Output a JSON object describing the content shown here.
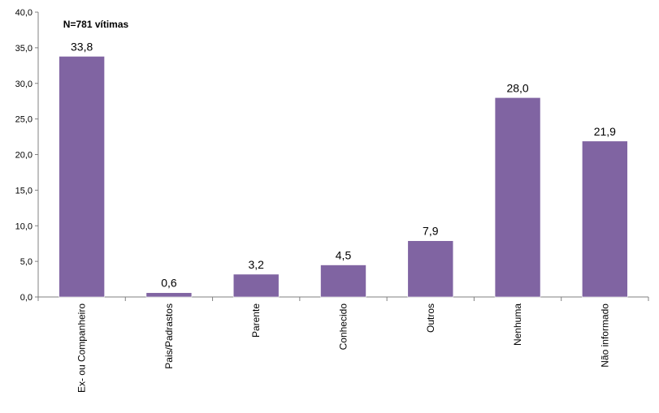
{
  "chart_data": {
    "type": "bar",
    "title": "",
    "xlabel": "",
    "ylabel": "",
    "annotation": "N=781 vítimas",
    "categories": [
      "Ex- ou Companheiro",
      "Pais/Padrastos",
      "Parente",
      "Conhecido",
      "Outros",
      "Nenhuma",
      "Não informado"
    ],
    "values": [
      33.8,
      0.6,
      3.2,
      4.5,
      7.9,
      28.0,
      21.9
    ],
    "value_labels": [
      "33,8",
      "0,6",
      "3,2",
      "4,5",
      "7,9",
      "28,0",
      "21,9"
    ],
    "ylim": [
      0,
      40
    ],
    "yticks": [
      0,
      5,
      10,
      15,
      20,
      25,
      30,
      35,
      40
    ],
    "ytick_labels": [
      "0,0",
      "5,0",
      "10,0",
      "15,0",
      "20,0",
      "25,0",
      "30,0",
      "35,0",
      "40,0"
    ],
    "grid": false,
    "legend": false,
    "bar_color": "#8064A2"
  }
}
